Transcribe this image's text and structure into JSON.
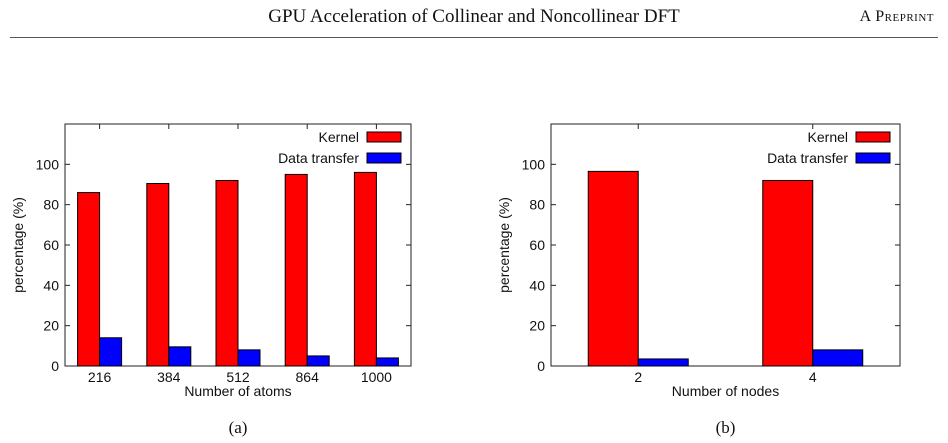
{
  "header": {
    "title": "GPU Acceleration of Collinear and Noncollinear DFT",
    "tag": "A Preprint"
  },
  "chart_data": [
    {
      "type": "bar",
      "xlabel": "Number of atoms",
      "ylabel": "percentage (%)",
      "caption": "(a)",
      "categories": [
        "216",
        "384",
        "512",
        "864",
        "1000"
      ],
      "ylim": [
        0,
        120
      ],
      "yticks": [
        0,
        20,
        40,
        60,
        80,
        100
      ],
      "legend_position": "top-right",
      "grid": false,
      "series": [
        {
          "name": "Kernel",
          "color": "#ff0000",
          "values": [
            86,
            90.5,
            92,
            95,
            96
          ]
        },
        {
          "name": "Data transfer",
          "color": "#0000ff",
          "values": [
            14,
            9.5,
            8,
            5,
            4
          ]
        }
      ]
    },
    {
      "type": "bar",
      "xlabel": "Number of nodes",
      "ylabel": "percentage (%)",
      "caption": "(b)",
      "categories": [
        "2",
        "4"
      ],
      "ylim": [
        0,
        120
      ],
      "yticks": [
        0,
        20,
        40,
        60,
        80,
        100
      ],
      "legend_position": "top-right",
      "grid": false,
      "series": [
        {
          "name": "Kernel",
          "color": "#ff0000",
          "values": [
            96.5,
            92
          ]
        },
        {
          "name": "Data transfer",
          "color": "#0000ff",
          "values": [
            3.5,
            8
          ]
        }
      ]
    }
  ]
}
